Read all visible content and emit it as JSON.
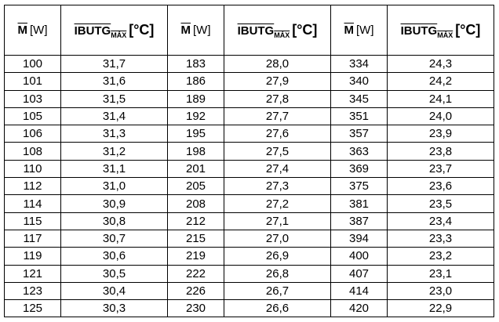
{
  "table": {
    "header": [
      {
        "symbol": "M",
        "unit": "[W]"
      },
      {
        "symbol": "IBUTG",
        "subscript": "MÁX",
        "unit": "[°C]"
      },
      {
        "symbol": "M",
        "unit": "[W]"
      },
      {
        "symbol": "IBUTG",
        "subscript": "MÁX",
        "unit": "[°C]"
      },
      {
        "symbol": "M",
        "unit": "[W]"
      },
      {
        "symbol": "IBUTG",
        "subscript": "MÁX",
        "unit": "[°C]"
      }
    ],
    "rows": [
      [
        "100",
        "31,7",
        "183",
        "28,0",
        "334",
        "24,3"
      ],
      [
        "101",
        "31,6",
        "186",
        "27,9",
        "340",
        "24,2"
      ],
      [
        "103",
        "31,5",
        "189",
        "27,8",
        "345",
        "24,1"
      ],
      [
        "105",
        "31,4",
        "192",
        "27,7",
        "351",
        "24,0"
      ],
      [
        "106",
        "31,3",
        "195",
        "27,6",
        "357",
        "23,9"
      ],
      [
        "108",
        "31,2",
        "198",
        "27,5",
        "363",
        "23,8"
      ],
      [
        "110",
        "31,1",
        "201",
        "27,4",
        "369",
        "23,7"
      ],
      [
        "112",
        "31,0",
        "205",
        "27,3",
        "375",
        "23,6"
      ],
      [
        "114",
        "30,9",
        "208",
        "27,2",
        "381",
        "23,5"
      ],
      [
        "115",
        "30,8",
        "212",
        "27,1",
        "387",
        "23,4"
      ],
      [
        "117",
        "30,7",
        "215",
        "27,0",
        "394",
        "23,3"
      ],
      [
        "119",
        "30,6",
        "219",
        "26,9",
        "400",
        "23,2"
      ],
      [
        "121",
        "30,5",
        "222",
        "26,8",
        "407",
        "23,1"
      ],
      [
        "123",
        "30,4",
        "226",
        "26,7",
        "414",
        "23,0"
      ],
      [
        "125",
        "30,3",
        "230",
        "26,6",
        "420",
        "22,9"
      ]
    ]
  }
}
